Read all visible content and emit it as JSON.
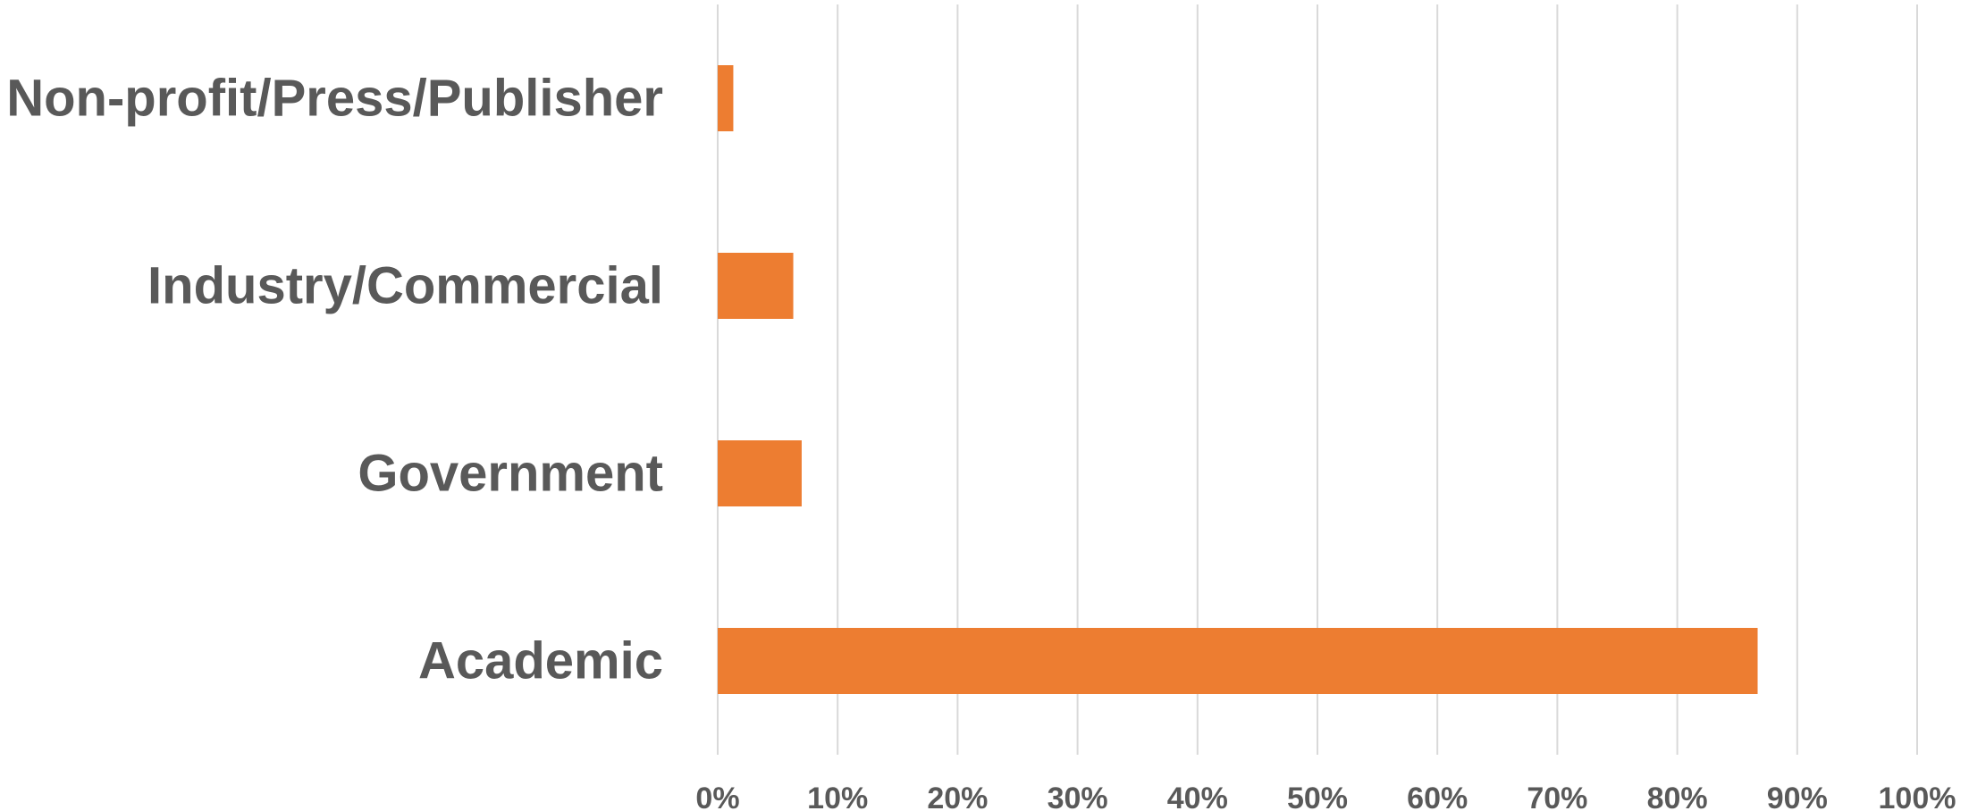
{
  "chart_data": {
    "type": "bar",
    "orientation": "horizontal",
    "categories": [
      "Non-profit/Press/Publisher",
      "Industry/Commercial",
      "Government",
      "Academic"
    ],
    "values": [
      1.3,
      6.3,
      7.0,
      86.7
    ],
    "unit": "%",
    "xlim": [
      0,
      100
    ],
    "x_ticks": [
      0,
      10,
      20,
      30,
      40,
      50,
      60,
      70,
      80,
      90,
      100
    ],
    "x_tick_labels": [
      "0%",
      "10%",
      "20%",
      "30%",
      "40%",
      "50%",
      "60%",
      "70%",
      "80%",
      "90%",
      "100%"
    ],
    "title": "",
    "xlabel": "",
    "ylabel": "",
    "grid": "vertical",
    "legend": "none",
    "bar_color": "#ED7D31"
  }
}
